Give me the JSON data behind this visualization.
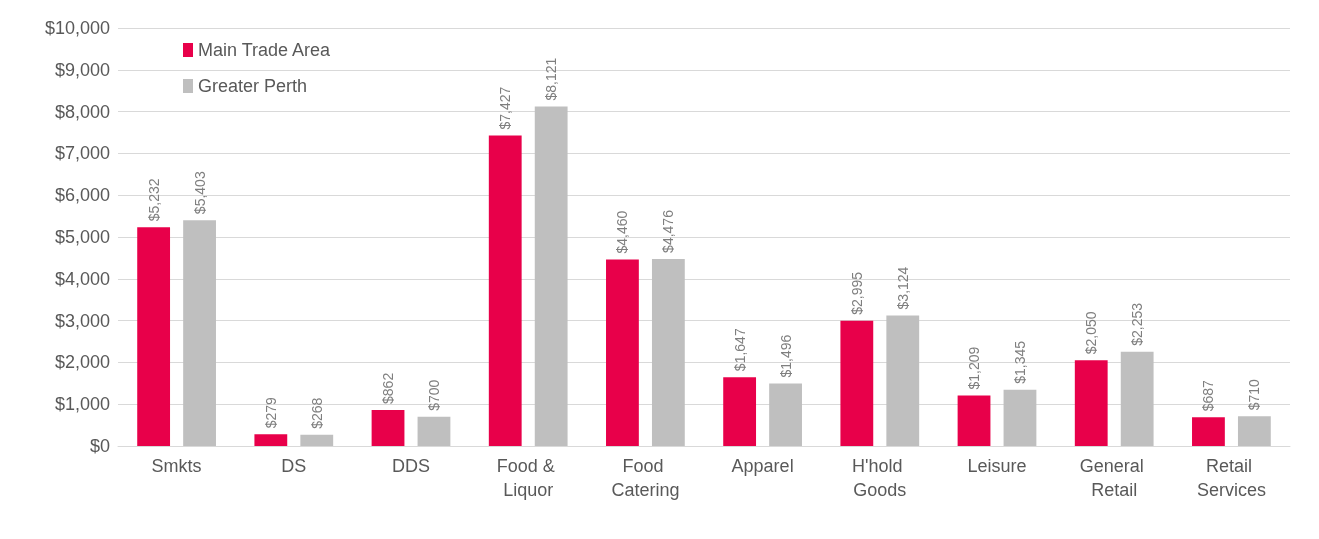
{
  "chart_data": {
    "type": "bar",
    "categories": [
      "Smkts",
      "DS",
      "DDS",
      "Food & Liquor",
      "Food Catering",
      "Apparel",
      "H'hold Goods",
      "Leisure",
      "General Retail",
      "Retail Services"
    ],
    "series": [
      {
        "name": "Main Trade Area",
        "color": "#e8004a",
        "values": [
          5232,
          279,
          862,
          7427,
          4460,
          1647,
          2995,
          1209,
          2050,
          687
        ],
        "value_labels": [
          "$5,232",
          "$279",
          "$862",
          "$7,427",
          "$4,460",
          "$1,647",
          "$2,995",
          "$1,209",
          "$2,050",
          "$687"
        ]
      },
      {
        "name": "Greater Perth",
        "color": "#bfbfbf",
        "values": [
          5403,
          268,
          700,
          8121,
          4476,
          1496,
          3124,
          1345,
          2253,
          710
        ],
        "value_labels": [
          "$5,403",
          "$268",
          "$700",
          "$8,121",
          "$4,476",
          "$1,496",
          "$3,124",
          "$1,345",
          "$2,253",
          "$710"
        ]
      }
    ],
    "ylim": [
      0,
      10000
    ],
    "yticks": [
      {
        "value": 0,
        "label": "$0"
      },
      {
        "value": 1000,
        "label": "$1,000"
      },
      {
        "value": 2000,
        "label": "$2,000"
      },
      {
        "value": 3000,
        "label": "$3,000"
      },
      {
        "value": 4000,
        "label": "$4,000"
      },
      {
        "value": 5000,
        "label": "$5,000"
      },
      {
        "value": 6000,
        "label": "$6,000"
      },
      {
        "value": 7000,
        "label": "$7,000"
      },
      {
        "value": 8000,
        "label": "$8,000"
      },
      {
        "value": 9000,
        "label": "$9,000"
      },
      {
        "value": 10000,
        "label": "$10,000"
      }
    ],
    "grid": "y",
    "legend": "top left"
  }
}
